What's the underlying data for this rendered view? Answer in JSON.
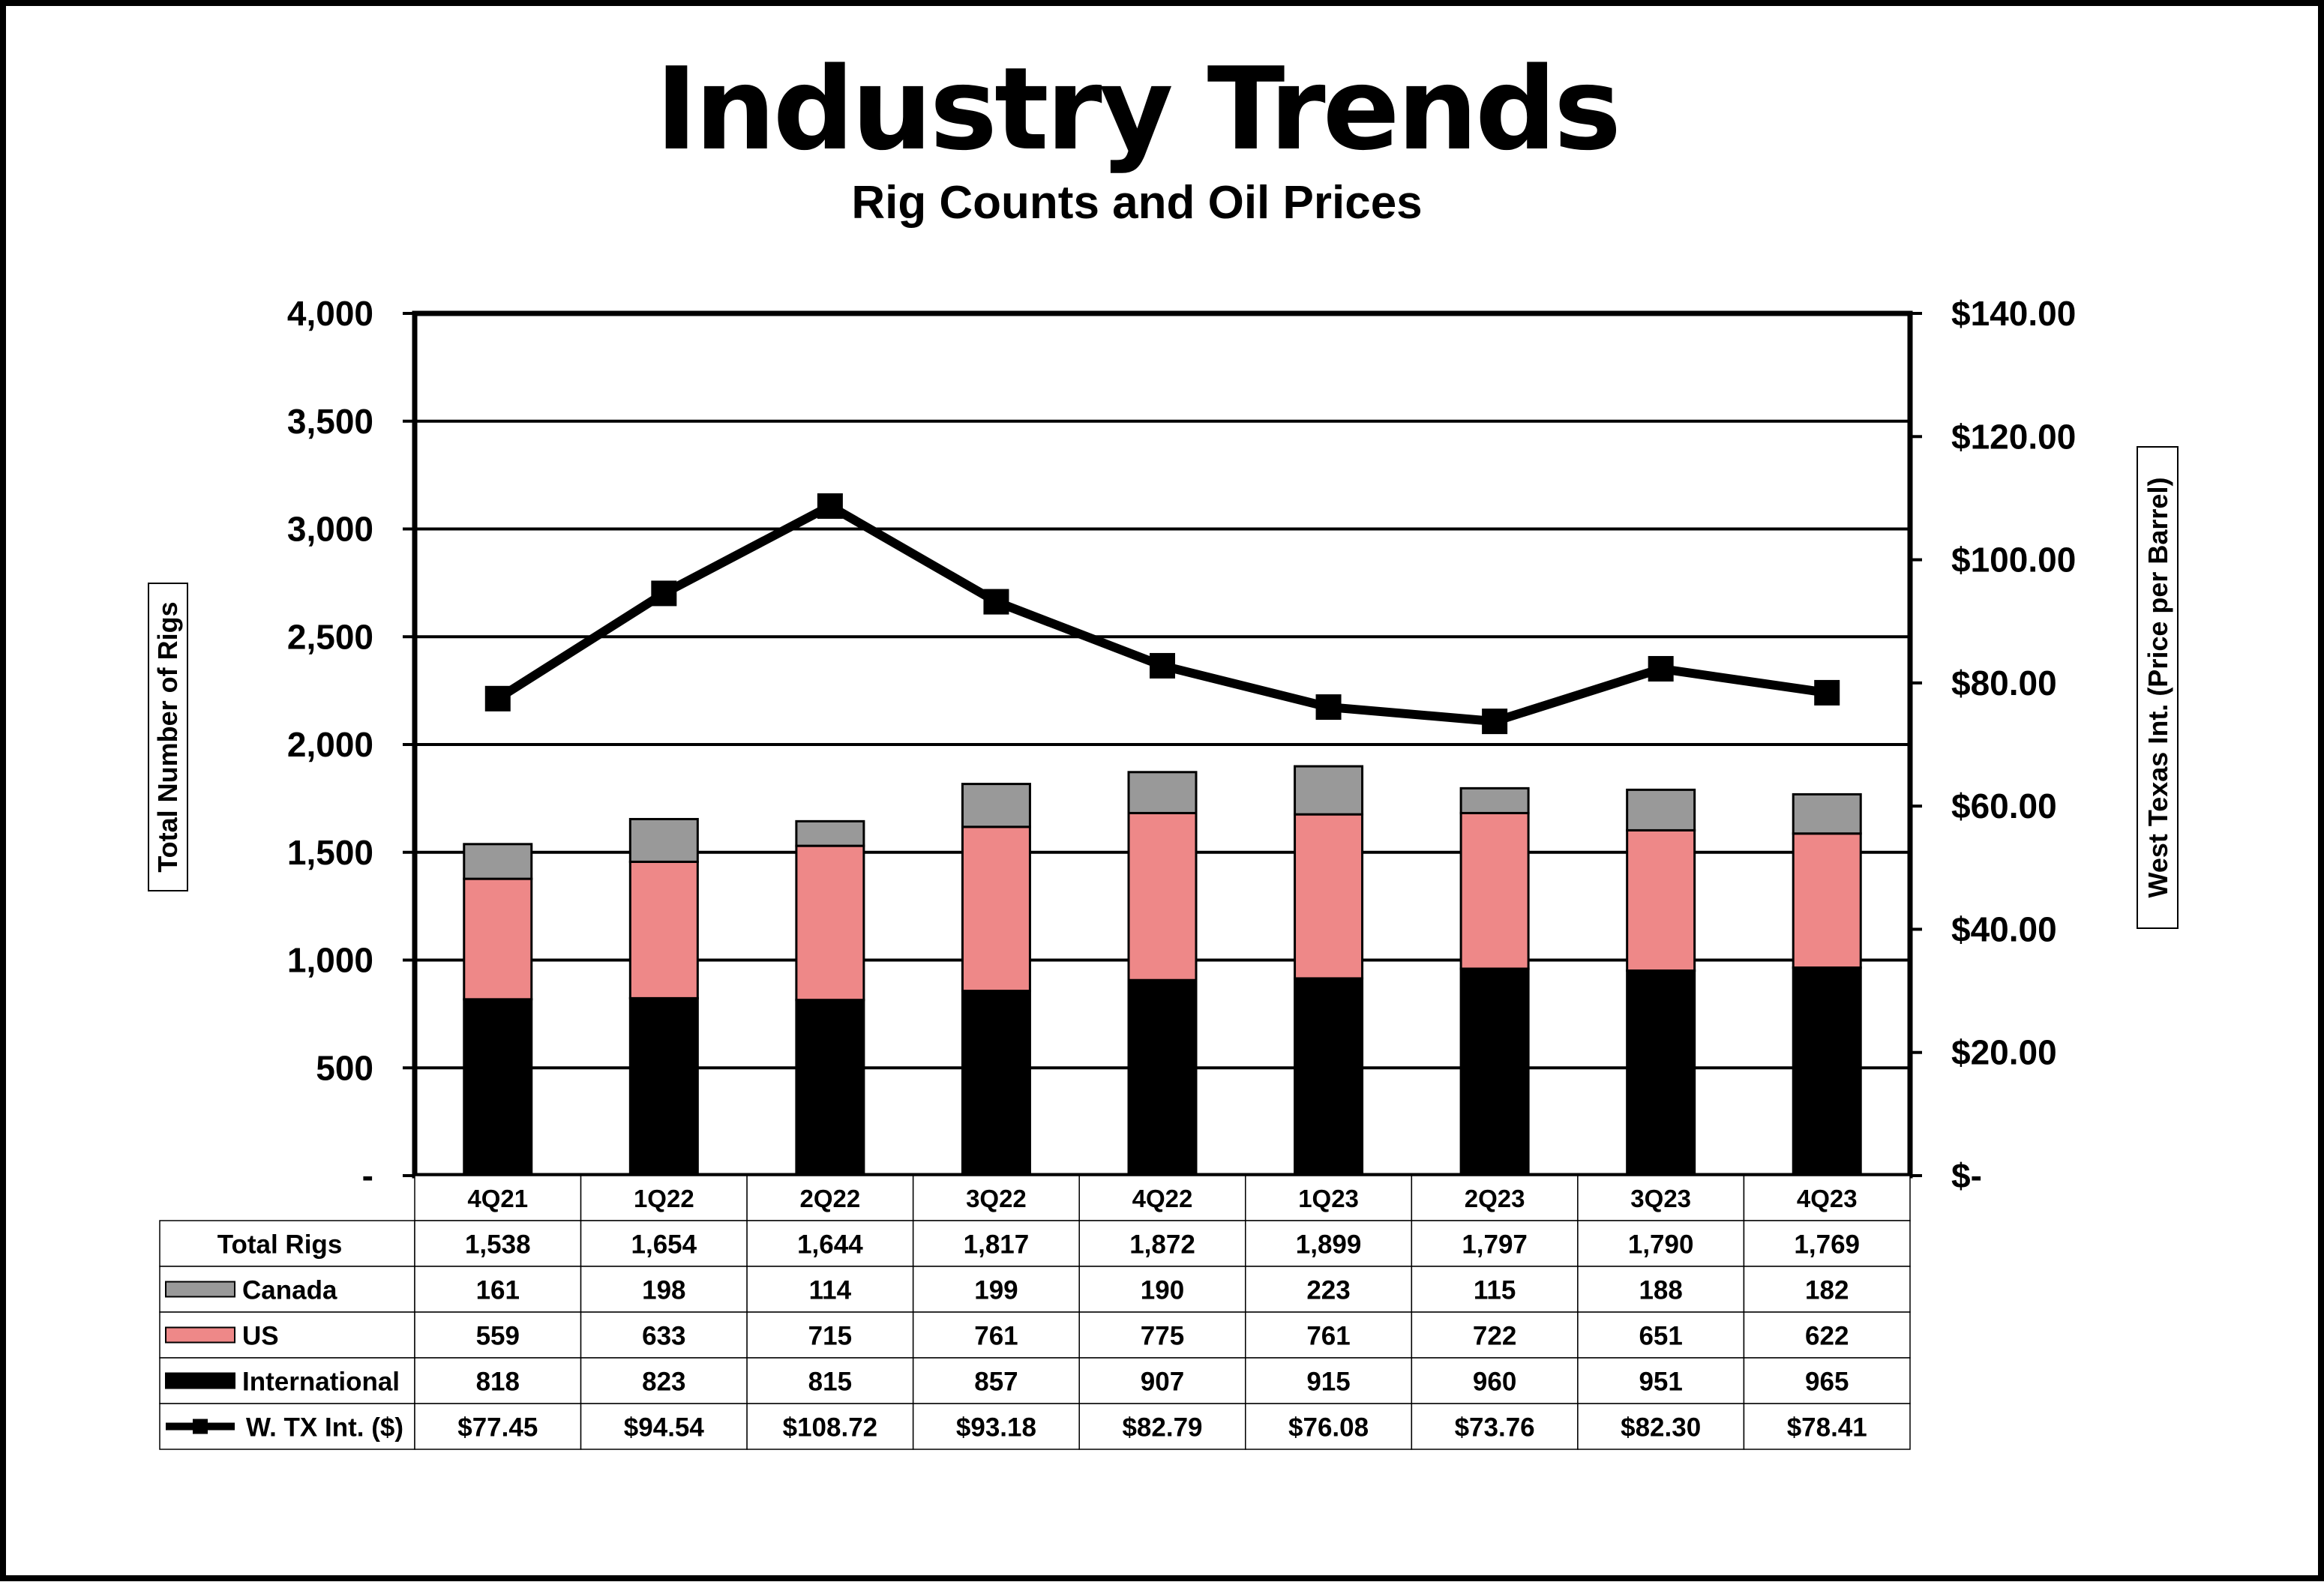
{
  "colors": {
    "canada": "#999999",
    "us": "#ee8888",
    "international": "#000000",
    "line": "#000000",
    "grid": "#000000"
  },
  "chart_data": {
    "type": "bar",
    "title": "Industry Trends",
    "subtitle": "Rig Counts and Oil Prices",
    "ylabel": "Total Number of Rigs",
    "y2label": "West Texas Int. (Price per Barrel)",
    "ylim": [
      0,
      4000
    ],
    "y2lim": [
      0,
      140
    ],
    "grid": true,
    "yticks": [
      "-",
      "500",
      "1,000",
      "1,500",
      "2,000",
      "2,500",
      "3,000",
      "3,500",
      "4,000"
    ],
    "y2ticks": [
      "$-",
      "$20.00",
      "$40.00",
      "$60.00",
      "$80.00",
      "$100.00",
      "$120.00",
      "$140.00"
    ],
    "categories": [
      "4Q21",
      "1Q22",
      "2Q22",
      "3Q22",
      "4Q22",
      "1Q23",
      "2Q23",
      "3Q23",
      "4Q23"
    ],
    "series": [
      {
        "name": "International",
        "type": "bar",
        "values": [
          818,
          823,
          815,
          857,
          907,
          915,
          960,
          951,
          965
        ]
      },
      {
        "name": "US",
        "type": "bar",
        "values": [
          559,
          633,
          715,
          761,
          775,
          761,
          722,
          651,
          622
        ]
      },
      {
        "name": "Canada",
        "type": "bar",
        "values": [
          161,
          198,
          114,
          199,
          190,
          223,
          115,
          188,
          182
        ]
      },
      {
        "name": "W. TX Int. ($)",
        "type": "line",
        "axis": "right",
        "values": [
          77.45,
          94.54,
          108.72,
          93.18,
          82.79,
          76.08,
          73.76,
          82.3,
          78.41
        ]
      }
    ],
    "table": {
      "rows": [
        {
          "label": "Total Rigs",
          "legend": "none",
          "cells": [
            "1,538",
            "1,654",
            "1,644",
            "1,817",
            "1,872",
            "1,899",
            "1,797",
            "1,790",
            "1,769"
          ]
        },
        {
          "label": "Canada",
          "legend": "canada",
          "cells": [
            "161",
            "198",
            "114",
            "199",
            "190",
            "223",
            "115",
            "188",
            "182"
          ]
        },
        {
          "label": "US",
          "legend": "us",
          "cells": [
            "559",
            "633",
            "715",
            "761",
            "775",
            "761",
            "722",
            "651",
            "622"
          ]
        },
        {
          "label": "International",
          "legend": "international",
          "cells": [
            "818",
            "823",
            "815",
            "857",
            "907",
            "915",
            "960",
            "951",
            "965"
          ]
        },
        {
          "label": "W. TX Int. ($)",
          "legend": "line",
          "cells": [
            "$77.45",
            "$94.54",
            "$108.72",
            "$93.18",
            "$82.79",
            "$76.08",
            "$73.76",
            "$82.30",
            "$78.41"
          ]
        }
      ]
    }
  }
}
